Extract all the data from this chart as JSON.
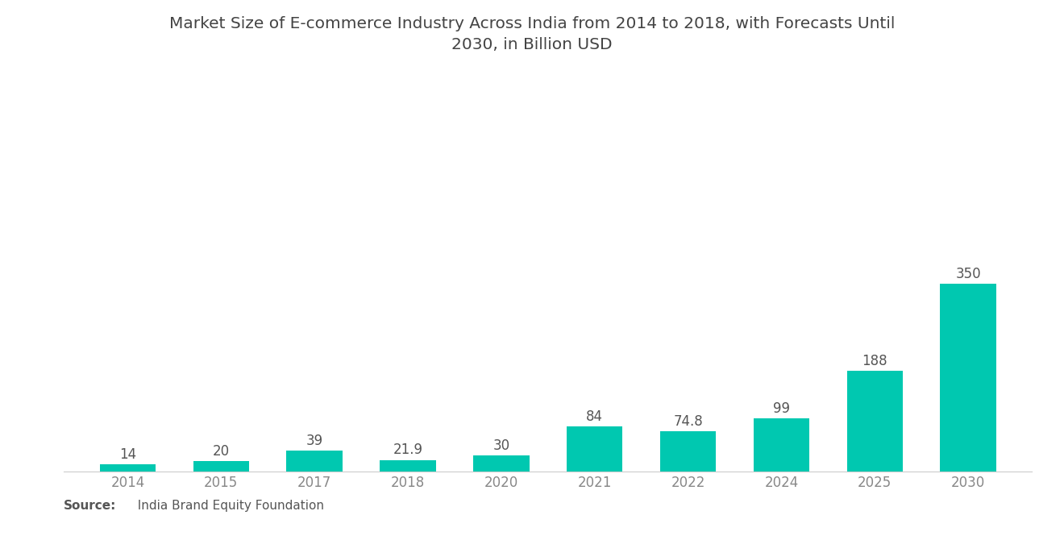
{
  "title_line1": "Market Size of E-commerce Industry Across India from 2014 to 2018, with Forecasts Until",
  "title_line2": "2030, in Billion USD",
  "categories": [
    "2014",
    "2015",
    "2017",
    "2018",
    "2020",
    "2021",
    "2022",
    "2024",
    "2025",
    "2030"
  ],
  "values": [
    14,
    20,
    39,
    21.9,
    30,
    84,
    74.8,
    99,
    188,
    350
  ],
  "bar_color": "#00C8B0",
  "background_color": "#ffffff",
  "title_fontsize": 14.5,
  "label_fontsize": 12,
  "tick_fontsize": 12,
  "source_bold": "Source:",
  "source_normal": "  India Brand Equity Foundation",
  "ylim": [
    0,
    420
  ],
  "bar_width": 0.6,
  "label_color": "#555555",
  "tick_color": "#888888"
}
